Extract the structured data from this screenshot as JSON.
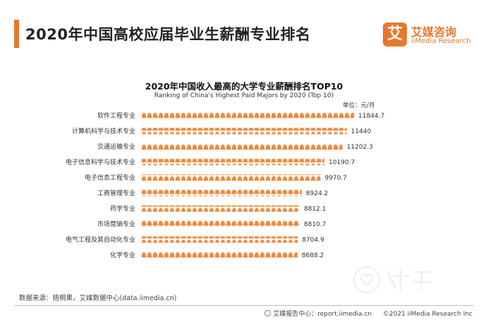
{
  "header": {
    "title": "2020年中国高校应届毕业生薪酬专业排名"
  },
  "logo": {
    "mark": "艾",
    "name_cn": "艾媒咨询",
    "name_en": "iiMedia Research"
  },
  "colors": {
    "accent": "#e8772e",
    "bar": "#f08a3e"
  },
  "chart_data": {
    "type": "bar",
    "orientation": "horizontal",
    "title": "2020年中国收入最高的大学专业薪酬排名TOP10",
    "subtitle": "Ranking of China's Highest Paid Majors by 2020 (Top 10)",
    "unit": "单位：元/月",
    "categories": [
      "软件工程专业",
      "计算机科学与技术专业",
      "交通运输专业",
      "电子信息科学与技术专业",
      "电子信息工程专业",
      "工商管理专业",
      "药学专业",
      "市场营销专业",
      "电气工程及其自动化专业",
      "化学专业"
    ],
    "values": [
      11844.7,
      11440,
      11202.3,
      10190.7,
      9970.7,
      8924.2,
      8812.1,
      8810.7,
      8704.9,
      8688.2
    ],
    "value_labels": [
      "11844.7",
      "11440",
      "11202.3",
      "10190.7",
      "9970.7",
      "8924.2",
      "8812.1",
      "8810.7",
      "8704.9",
      "8688.2"
    ],
    "xlim": [
      0,
      11844.7
    ],
    "grid": false,
    "legend": "none"
  },
  "footer": {
    "source": "数据来源：梧桐果，艾媒数据中心(data.iimedia.cn)",
    "report": "艾媒报告中心：report.iimedia.cn",
    "copyright": "©2021  iiMedia Research  Inc"
  }
}
